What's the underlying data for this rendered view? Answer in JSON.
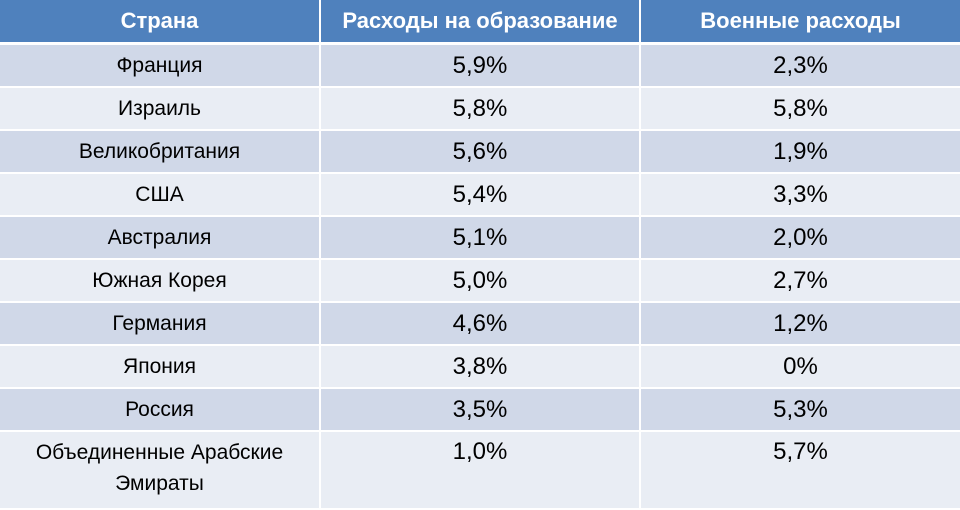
{
  "table": {
    "headers": [
      "Страна",
      "Расходы на образование",
      "Военные расходы"
    ],
    "rows": [
      {
        "country": "Франция",
        "education": "5,9%",
        "military": "2,3%"
      },
      {
        "country": "Израиль",
        "education": "5,8%",
        "military": "5,8%"
      },
      {
        "country": "Великобритания",
        "education": "5,6%",
        "military": "1,9%"
      },
      {
        "country": "США",
        "education": "5,4%",
        "military": "3,3%"
      },
      {
        "country": "Австралия",
        "education": "5,1%",
        "military": "2,0%"
      },
      {
        "country": "Южная Корея",
        "education": "5,0%",
        "military": "2,7%"
      },
      {
        "country": "Германия",
        "education": "4,6%",
        "military": "1,2%"
      },
      {
        "country": "Япония",
        "education": "3,8%",
        "military": "0%"
      },
      {
        "country": "Россия",
        "education": "3,5%",
        "military": "5,3%"
      },
      {
        "country": "Объединенные Арабские Эмираты",
        "education": "1,0%",
        "military": "5,7%"
      }
    ]
  },
  "colors": {
    "header_bg": "#4f81bd",
    "row_odd_bg": "#d0d8e8",
    "row_even_bg": "#e9edf4"
  }
}
